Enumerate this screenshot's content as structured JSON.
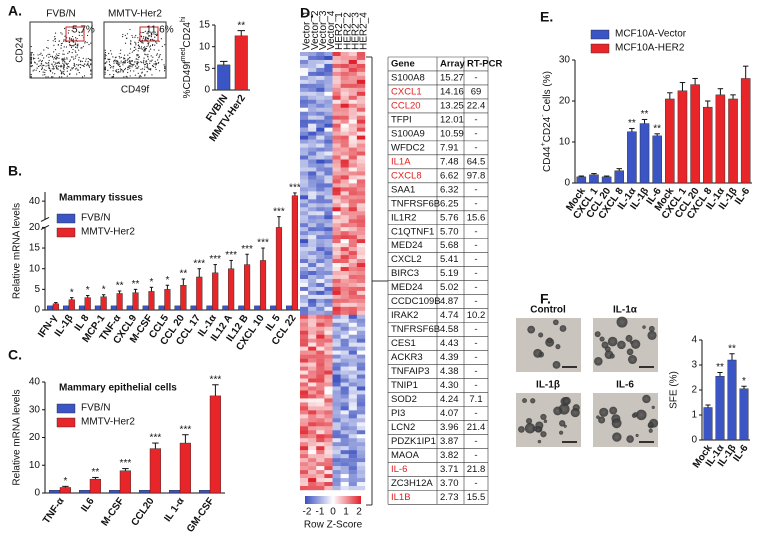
{
  "panels": {
    "A": {
      "label": "A.",
      "flow": {
        "plots": [
          "FVB/N",
          "MMTV-Her2"
        ],
        "gates": [
          "5.7%",
          "11.6%"
        ],
        "y_label": "CD24",
        "x_label": "CD49f"
      },
      "chart_data": {
        "type": "bar",
        "categories": [
          "FVB/N",
          "MMTV-Her2"
        ],
        "colors": [
          "#3b55c4",
          "#e8262a"
        ],
        "series": [
          {
            "values": [
              5.8,
              12.5
            ],
            "errors": [
              0.8,
              1.2
            ],
            "stars": [
              null,
              "**"
            ]
          }
        ],
        "ylim": [
          0,
          15
        ],
        "yticks": [
          0,
          5,
          10,
          15
        ],
        "y_label": [
          "%CD49f",
          "med",
          "CD24",
          "hi"
        ]
      }
    },
    "B": {
      "label": "B.",
      "chart_data": {
        "type": "bar",
        "title": "Mammary tissues",
        "legend": "top-left",
        "categories": [
          "IFN-γ",
          "IL-1β",
          "IL 8",
          "MCP-1",
          "TNF-α",
          "CXCL9",
          "M-CSF",
          "CCL5",
          "CCL 20",
          "CCL 17",
          "IL-1α",
          "IL12 A",
          "IL12 B",
          "CXCL 10",
          "IL 5",
          "CCL 22"
        ],
        "series": [
          {
            "name": "FVB/N",
            "color": "#3b55c4",
            "values": [
              1,
              1,
              1,
              1,
              1,
              1,
              1,
              1,
              1,
              1,
              1,
              1,
              1,
              1,
              1,
              1
            ]
          },
          {
            "name": "MMTV-Her2",
            "color": "#e8262a",
            "values": [
              1.5,
              2.5,
              3,
              3.2,
              4,
              4.2,
              4.5,
              5,
              6,
              8,
              9,
              10,
              11,
              12,
              20,
              46
            ],
            "errors": [
              0.3,
              0.5,
              0.5,
              0.5,
              0.6,
              0.8,
              1,
              1,
              1.5,
              2,
              2,
              2,
              2.5,
              3,
              3,
              3
            ],
            "stars": [
              null,
              "*",
              "*",
              "*",
              "**",
              "**",
              "*",
              "*",
              "**",
              "***",
              "***",
              "***",
              "***",
              "***",
              "***",
              "***"
            ]
          }
        ],
        "ylim": [
          0,
          50
        ],
        "axis_break": 20,
        "yticks": [
          0,
          5,
          10,
          15,
          20,
          40
        ],
        "y_label": "Relative mRNA levels"
      }
    },
    "C": {
      "label": "C.",
      "chart_data": {
        "type": "bar",
        "title": "Mammary epithelial cells",
        "legend": "top-left",
        "categories": [
          "TNF-α",
          "IL6",
          "M-CSF",
          "CCL20",
          "IL 1-α",
          "GM-CSF"
        ],
        "series": [
          {
            "name": "FVB/N",
            "color": "#3b55c4",
            "values": [
              1,
              1,
              1,
              1,
              1,
              1
            ]
          },
          {
            "name": "MMTV-Her2",
            "color": "#e8262a",
            "values": [
              2,
              5,
              8,
              16,
              18,
              35
            ],
            "errors": [
              0.4,
              0.6,
              0.8,
              2,
              3,
              4
            ],
            "stars": [
              "*",
              "**",
              "***",
              "***",
              "***",
              "***"
            ]
          }
        ],
        "ylim": [
          0,
          40
        ],
        "yticks": [
          0,
          10,
          20,
          30,
          40
        ],
        "y_label": "Relative mRNA levels"
      }
    },
    "D": {
      "label": "D.",
      "heatmap": {
        "columns": [
          "Vector_1",
          "Vector_2",
          "Vector_3",
          "Vector_4",
          "HER2_1",
          "HER2_2",
          "HER2_3",
          "HER2_4"
        ],
        "colorbar": {
          "ticks": [
            -2,
            -1,
            0,
            1,
            2
          ],
          "label": "Row Z-Score"
        }
      },
      "table": {
        "header": [
          "Gene",
          "Array",
          "RT-PCR"
        ],
        "highlight_color": "#e02020",
        "rows": [
          {
            "gene": "S100A8",
            "array": "15.27",
            "rt_pcr": "-"
          },
          {
            "gene": "CXCL1",
            "array": "14.16",
            "rt_pcr": "69",
            "red": true
          },
          {
            "gene": "CCL20",
            "array": "13.25",
            "rt_pcr": "22.4",
            "red": true
          },
          {
            "gene": "TFPI",
            "array": "12.01",
            "rt_pcr": "-"
          },
          {
            "gene": "S100A9",
            "array": "10.59",
            "rt_pcr": "-"
          },
          {
            "gene": "WFDC2",
            "array": "7.91",
            "rt_pcr": "-"
          },
          {
            "gene": "IL1A",
            "array": "7.48",
            "rt_pcr": "64.5",
            "red": true
          },
          {
            "gene": "CXCL8",
            "array": "6.62",
            "rt_pcr": "97.8",
            "red": true
          },
          {
            "gene": "SAA1",
            "array": "6.32",
            "rt_pcr": "-"
          },
          {
            "gene": "TNFRSF6B",
            "array": "6.25",
            "rt_pcr": "-"
          },
          {
            "gene": "IL1R2",
            "array": "5.76",
            "rt_pcr": "15.6"
          },
          {
            "gene": "C1QTNF1",
            "array": "5.70",
            "rt_pcr": "-"
          },
          {
            "gene": "MED24",
            "array": "5.68",
            "rt_pcr": "-"
          },
          {
            "gene": "CXCL2",
            "array": "5.41",
            "rt_pcr": "-"
          },
          {
            "gene": "BIRC3",
            "array": "5.19",
            "rt_pcr": "-"
          },
          {
            "gene": "MED24",
            "array": "5.02",
            "rt_pcr": "-"
          },
          {
            "gene": "CCDC109B",
            "array": "4.87",
            "rt_pcr": "-"
          },
          {
            "gene": "IRAK2",
            "array": "4.74",
            "rt_pcr": "10.2"
          },
          {
            "gene": "TNFRSF6B",
            "array": "4.58",
            "rt_pcr": "-"
          },
          {
            "gene": "CES1",
            "array": "4.43",
            "rt_pcr": "-"
          },
          {
            "gene": "ACKR3",
            "array": "4.39",
            "rt_pcr": "-"
          },
          {
            "gene": "TNFAIP3",
            "array": "4.38",
            "rt_pcr": "-"
          },
          {
            "gene": "TNIP1",
            "array": "4.30",
            "rt_pcr": "-"
          },
          {
            "gene": "SOD2",
            "array": "4.24",
            "rt_pcr": "7.1"
          },
          {
            "gene": "PI3",
            "array": "4.07",
            "rt_pcr": "-"
          },
          {
            "gene": "LCN2",
            "array": "3.96",
            "rt_pcr": "21.4"
          },
          {
            "gene": "PDZK1IP1",
            "array": "3.87",
            "rt_pcr": "-"
          },
          {
            "gene": "MAOA",
            "array": "3.82",
            "rt_pcr": "-"
          },
          {
            "gene": "IL-6",
            "array": "3.71",
            "rt_pcr": "21.8",
            "red": true
          },
          {
            "gene": "ZC3H12A",
            "array": "3.70",
            "rt_pcr": "-"
          },
          {
            "gene": "IL1B",
            "array": "2.73",
            "rt_pcr": "15.5",
            "red": true
          }
        ]
      }
    },
    "E": {
      "label": "E.",
      "chart_data": {
        "type": "bar",
        "legend": "top",
        "categories": [
          "Mock",
          "CXCL 1",
          "CCL 20",
          "CXCL 8",
          "IL-1α",
          "IL-1β",
          "IL-6",
          "Mock",
          "CXCL 1",
          "CCL 20",
          "CXCL 8",
          "IL-1α",
          "IL-1β",
          "IL-6"
        ],
        "series": [
          {
            "name": "MCF10A-Vector",
            "color": "#3b55c4",
            "values": [
              1.5,
              2,
              1.5,
              3,
              12.5,
              14.5,
              11.5,
              null,
              null,
              null,
              null,
              null,
              null,
              null
            ],
            "errors": [
              0.2,
              0.3,
              0.2,
              0.5,
              0.8,
              1,
              0.5,
              null,
              null,
              null,
              null,
              null,
              null,
              null
            ],
            "stars": [
              null,
              null,
              null,
              null,
              "**",
              "**",
              "**",
              null,
              null,
              null,
              null,
              null,
              null,
              null
            ]
          },
          {
            "name": "MCF10A-HER2",
            "color": "#e8262a",
            "values": [
              null,
              null,
              null,
              null,
              null,
              null,
              null,
              20.5,
              22.5,
              24,
              18.5,
              21.5,
              20.5,
              25.5
            ],
            "errors": [
              null,
              null,
              null,
              null,
              null,
              null,
              null,
              1.5,
              2,
              1.5,
              1.5,
              1.5,
              1,
              3
            ]
          }
        ],
        "ylim": [
          0,
          30
        ],
        "yticks": [
          0,
          10,
          20,
          30
        ],
        "y_label": [
          "CD44",
          "+",
          "CD24",
          "-",
          " Cells (%)"
        ]
      }
    },
    "F": {
      "label": "F.",
      "images": [
        "Control",
        "IL-1α",
        "IL-1β",
        "IL-6"
      ],
      "chart_data": {
        "type": "bar",
        "categories": [
          "Mock",
          "IL-1α",
          "IL-1β",
          "IL-6"
        ],
        "series": [
          {
            "color": "#3b55c4",
            "values": [
              1.3,
              2.55,
              3.2,
              2.05
            ],
            "errors": [
              0.1,
              0.15,
              0.25,
              0.1
            ],
            "stars": [
              null,
              "**",
              "**",
              "*"
            ]
          }
        ],
        "ylim": [
          0,
          4
        ],
        "yticks": [
          0,
          1,
          2,
          3,
          4
        ],
        "y_label": "SFE (%)"
      }
    }
  }
}
